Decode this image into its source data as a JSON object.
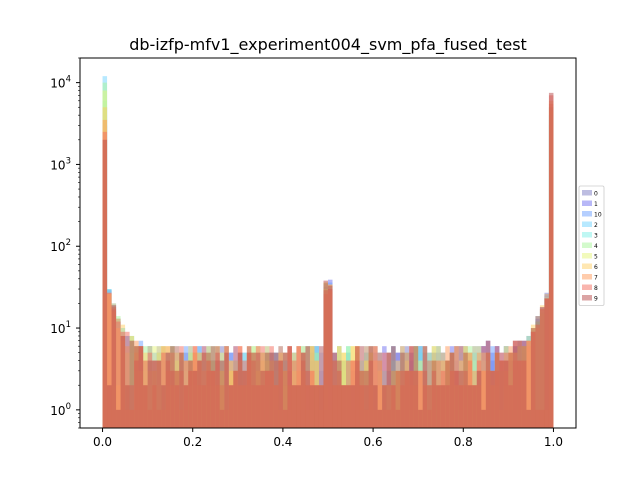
{
  "chart_data": {
    "type": "histogram",
    "title": "db-izfp-mfv1_experiment004_svm_pfa_fused_test",
    "xlabel": "",
    "ylabel": "",
    "xlim": [
      -0.05,
      1.05
    ],
    "ylim": [
      0.6,
      20000
    ],
    "yscale": "log",
    "x_ticks": [
      "0.0",
      "0.2",
      "0.4",
      "0.6",
      "0.8",
      "1.0"
    ],
    "x_tick_values": [
      0.0,
      0.2,
      0.4,
      0.6,
      0.8,
      1.0
    ],
    "y_ticks": [
      {
        "base": "10",
        "exp": "0",
        "value": 1
      },
      {
        "base": "10",
        "exp": "1",
        "value": 10
      },
      {
        "base": "10",
        "exp": "2",
        "value": 100
      },
      {
        "base": "10",
        "exp": "3",
        "value": 1000
      },
      {
        "base": "10",
        "exp": "4",
        "value": 10000
      }
    ],
    "bins": 100,
    "bin_range": [
      0.0,
      1.0
    ],
    "legend_position": "right",
    "series": [
      {
        "name": "0",
        "color": "#7b7bc4",
        "first_bin": 3000,
        "last_bin": 5000
      },
      {
        "name": "1",
        "color": "#6f6ff0",
        "first_bin": 5000,
        "last_bin": 3000
      },
      {
        "name": "10",
        "color": "#6b9fff",
        "first_bin": 4000,
        "last_bin": 4000
      },
      {
        "name": "2",
        "color": "#6fd3ff",
        "first_bin": 12000,
        "last_bin": 4000
      },
      {
        "name": "3",
        "color": "#7ff0e8",
        "first_bin": 6000,
        "last_bin": 3500
      },
      {
        "name": "4",
        "color": "#a8f59a",
        "first_bin": 10000,
        "last_bin": 5000
      },
      {
        "name": "5",
        "color": "#e6f57a",
        "first_bin": 8000,
        "last_bin": 4500
      },
      {
        "name": "6",
        "color": "#ffd066",
        "first_bin": 5000,
        "last_bin": 6000
      },
      {
        "name": "7",
        "color": "#ff9a5a",
        "first_bin": 3500,
        "last_bin": 5500
      },
      {
        "name": "8",
        "color": "#f36b5e",
        "first_bin": 2500,
        "last_bin": 7000
      },
      {
        "name": "9",
        "color": "#b84a4a",
        "first_bin": 2000,
        "last_bin": 7500
      }
    ]
  }
}
